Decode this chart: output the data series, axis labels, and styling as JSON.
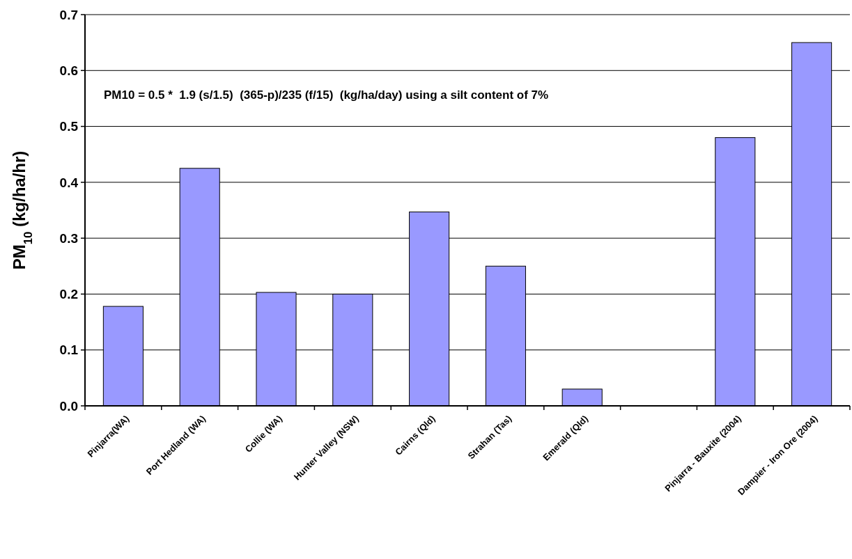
{
  "chart_data": {
    "type": "bar",
    "ylabel": "PM$_{10}$ (kg/ha/hr)",
    "categories": [
      "Pinjarra(WA)",
      "Port Hedland (WA)",
      "Collie (WA)",
      "Hunter Valley (NSW)",
      "Cairns (Qld)",
      "Strahan (Tas)",
      "Emerald (Qld)",
      null,
      "Pinjarra - Bauxite (2004)",
      "Dampier - Iron Ore (2004)"
    ],
    "values": [
      0.178,
      0.425,
      0.203,
      0.2,
      0.347,
      0.25,
      0.03,
      null,
      0.48,
      0.65
    ],
    "color": "#9999ff",
    "ylim": [
      0,
      0.7
    ],
    "yticks": [
      {
        "value": 0,
        "label": "0.0"
      },
      0.1,
      0.2,
      0.3,
      0.4,
      0.5,
      0.6,
      0.7
    ],
    "grid": "y",
    "annotations": [
      "PM10 = 0.5 *  1.9 (s/1.5)  (365-p)/235 (f/15)  (kg/ha/day) using a silt content of 7%"
    ]
  }
}
